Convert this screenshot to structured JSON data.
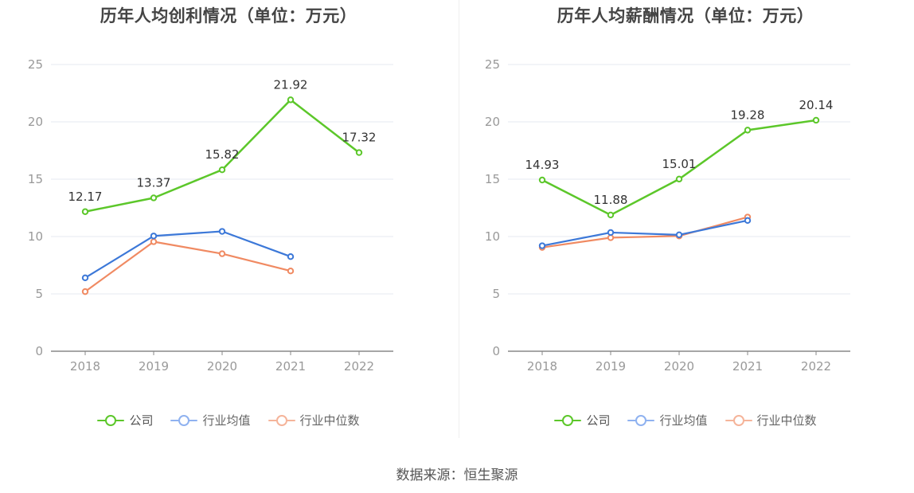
{
  "source_text": "数据来源：恒生聚源",
  "colors": {
    "company": "#5cc72a",
    "avg": "#3c78d8",
    "median": "#f08a62",
    "avg_legend": "#8fb2f0",
    "median_legend": "#f5b49a"
  },
  "chart_data": [
    {
      "type": "line",
      "title": "历年人均创利情况（单位：万元）",
      "xlabel": "",
      "ylabel": "",
      "categories": [
        "2018",
        "2019",
        "2020",
        "2021",
        "2022"
      ],
      "ylim": [
        0,
        25
      ],
      "yticks": [
        "0",
        "5",
        "10",
        "15",
        "20",
        "25"
      ],
      "grid": true,
      "legend_position": "bottom",
      "series": [
        {
          "name": "公司",
          "values": [
            12.17,
            13.37,
            15.82,
            21.92,
            17.32
          ],
          "labels": [
            "12.17",
            "13.37",
            "15.82",
            "21.92",
            "17.32"
          ]
        },
        {
          "name": "行业均值",
          "values": [
            6.4,
            10.05,
            10.45,
            8.25,
            null
          ]
        },
        {
          "name": "行业中位数",
          "values": [
            5.2,
            9.55,
            8.5,
            7.0,
            null
          ]
        }
      ]
    },
    {
      "type": "line",
      "title": "历年人均薪酬情况（单位：万元）",
      "xlabel": "",
      "ylabel": "",
      "categories": [
        "2018",
        "2019",
        "2020",
        "2021",
        "2022"
      ],
      "ylim": [
        0,
        25
      ],
      "yticks": [
        "0",
        "5",
        "10",
        "15",
        "20",
        "25"
      ],
      "grid": true,
      "legend_position": "bottom",
      "series": [
        {
          "name": "公司",
          "values": [
            14.93,
            11.88,
            15.01,
            19.28,
            20.14
          ],
          "labels": [
            "14.93",
            "11.88",
            "15.01",
            "19.28",
            "20.14"
          ]
        },
        {
          "name": "行业均值",
          "values": [
            9.2,
            10.35,
            10.15,
            11.4,
            null
          ]
        },
        {
          "name": "行业中位数",
          "values": [
            9.05,
            9.9,
            10.05,
            11.7,
            null
          ]
        }
      ]
    }
  ]
}
